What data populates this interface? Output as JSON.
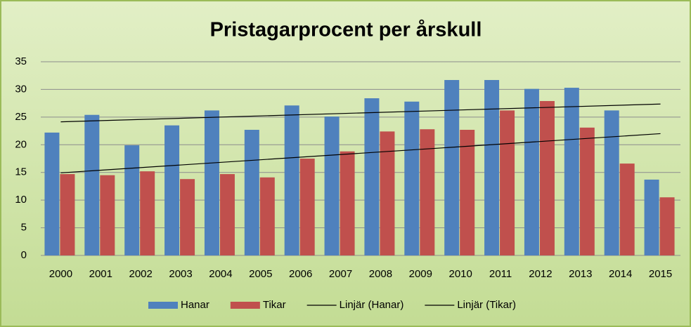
{
  "chart_data": {
    "type": "bar",
    "title": "Pristagarprocent per årskull",
    "categories": [
      "2000",
      "2001",
      "2002",
      "2003",
      "2004",
      "2005",
      "2006",
      "2007",
      "2008",
      "2009",
      "2010",
      "2011",
      "2012",
      "2013",
      "2014",
      "2015"
    ],
    "series": [
      {
        "name": "Hanar",
        "color": "#4f81bd",
        "trendline": "Linjär (Hanar)",
        "values": [
          22.2,
          25.4,
          19.9,
          23.5,
          26.2,
          22.7,
          27.1,
          25.1,
          28.4,
          27.8,
          31.7,
          31.7,
          30.1,
          30.3,
          26.2,
          13.7
        ]
      },
      {
        "name": "Tikar",
        "color": "#c0504d",
        "trendline": "Linjär (Tikar)",
        "values": [
          14.7,
          14.5,
          15.2,
          13.8,
          14.7,
          14.1,
          17.5,
          18.8,
          22.4,
          22.8,
          22.7,
          26.2,
          27.9,
          23.1,
          16.6,
          10.5
        ]
      }
    ],
    "ylim": [
      0,
      35
    ],
    "yticks": [
      0,
      5,
      10,
      15,
      20,
      25,
      30,
      35
    ],
    "grid": true,
    "legend": "bottom"
  }
}
